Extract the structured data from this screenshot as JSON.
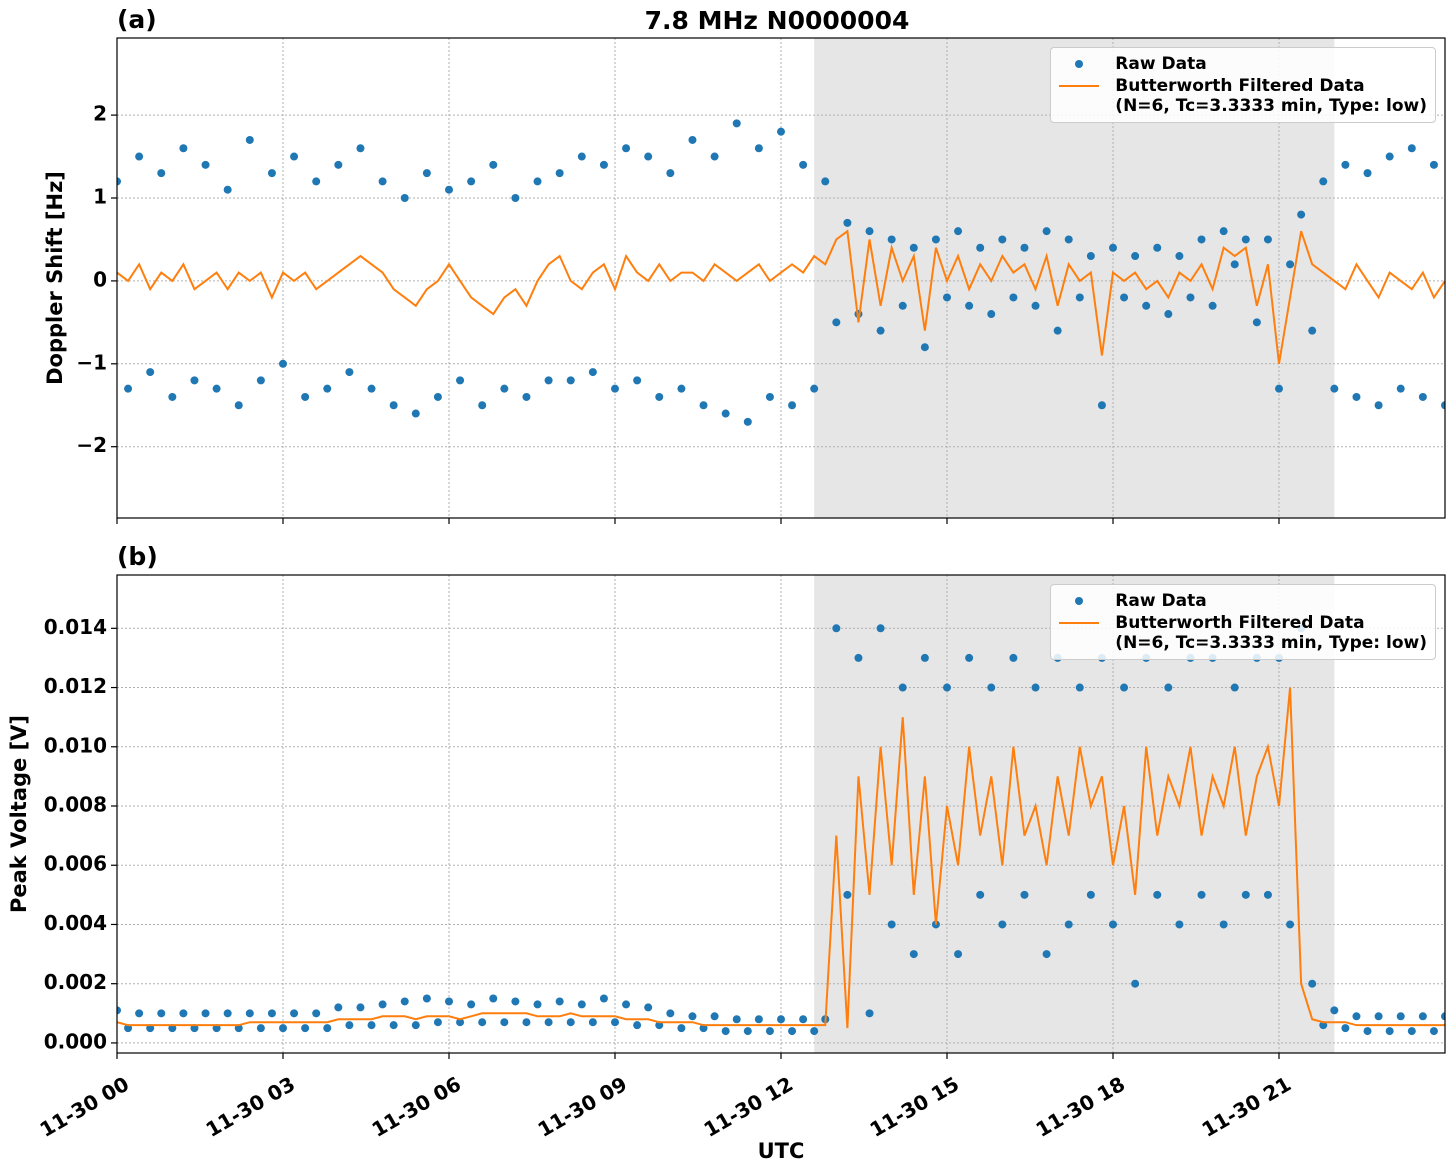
{
  "chart_data": [
    {
      "type": "line",
      "panel_label": "(a)",
      "title": "7.8 MHz N0000004",
      "ylabel": "Doppler Shift [Hz]",
      "xlim": [
        0,
        24
      ],
      "xticks": [
        0,
        3,
        6,
        9,
        12,
        15,
        18,
        21
      ],
      "ylim": [
        -2.86,
        2.93
      ],
      "yticks": [
        {
          "value": -2,
          "label": "−2"
        },
        {
          "value": -1,
          "label": "−1"
        },
        0,
        1,
        2
      ],
      "grid": true,
      "shaded_span": [
        12.6,
        22.0
      ],
      "legend": "upper right",
      "x": [
        0,
        0.2,
        0.4,
        0.6,
        0.8,
        1,
        1.2,
        1.4,
        1.6,
        1.8,
        2,
        2.2,
        2.4,
        2.6,
        2.8,
        3,
        3.2,
        3.4,
        3.6,
        3.8,
        4,
        4.2,
        4.4,
        4.6,
        4.8,
        5,
        5.2,
        5.4,
        5.6,
        5.8,
        6,
        6.2,
        6.4,
        6.6,
        6.8,
        7,
        7.2,
        7.4,
        7.6,
        7.8,
        8,
        8.2,
        8.4,
        8.6,
        8.8,
        9,
        9.2,
        9.4,
        9.6,
        9.8,
        10,
        10.2,
        10.4,
        10.6,
        10.8,
        11,
        11.2,
        11.4,
        11.6,
        11.8,
        12,
        12.2,
        12.4,
        12.6,
        12.8,
        13,
        13.2,
        13.4,
        13.6,
        13.8,
        14,
        14.2,
        14.4,
        14.6,
        14.8,
        15,
        15.2,
        15.4,
        15.6,
        15.8,
        16,
        16.2,
        16.4,
        16.6,
        16.8,
        17,
        17.2,
        17.4,
        17.6,
        17.8,
        18,
        18.2,
        18.4,
        18.6,
        18.8,
        19,
        19.2,
        19.4,
        19.6,
        19.8,
        20,
        20.2,
        20.4,
        20.6,
        20.8,
        21,
        21.2,
        21.4,
        21.6,
        21.8,
        22,
        22.2,
        22.4,
        22.6,
        22.8,
        23,
        23.2,
        23.4,
        23.6,
        23.8,
        24
      ],
      "series": [
        {
          "name": "Raw Data",
          "color": "#1f77b4",
          "style": "markers",
          "values": [
            1.2,
            -1.3,
            1.5,
            -1.1,
            1.3,
            -1.4,
            1.6,
            -1.2,
            1.4,
            -1.3,
            1.1,
            -1.5,
            1.7,
            -1.2,
            1.3,
            -1.0,
            1.5,
            -1.4,
            1.2,
            -1.3,
            1.4,
            -1.1,
            1.6,
            -1.3,
            1.2,
            -1.5,
            1.0,
            -1.6,
            1.3,
            -1.4,
            1.1,
            -1.2,
            1.2,
            -1.5,
            1.4,
            -1.3,
            1.0,
            -1.4,
            1.2,
            -1.2,
            1.3,
            -1.2,
            1.5,
            -1.1,
            1.4,
            -1.3,
            1.6,
            -1.2,
            1.5,
            -1.4,
            1.3,
            -1.3,
            1.7,
            -1.5,
            1.5,
            -1.6,
            1.9,
            -1.7,
            1.6,
            -1.4,
            1.8,
            -1.5,
            1.4,
            -1.3,
            1.2,
            -0.5,
            0.7,
            -0.4,
            0.6,
            -0.6,
            0.5,
            -0.3,
            0.4,
            -0.8,
            0.5,
            -0.2,
            0.6,
            -0.3,
            0.4,
            -0.4,
            0.5,
            -0.2,
            0.4,
            -0.3,
            0.6,
            -0.6,
            0.5,
            -0.2,
            0.3,
            -1.5,
            0.4,
            -0.2,
            0.3,
            -0.3,
            0.4,
            -0.4,
            0.3,
            -0.2,
            0.5,
            -0.3,
            0.6,
            0.2,
            0.5,
            -0.5,
            0.5,
            -1.3,
            0.2,
            0.8,
            -0.6,
            1.2,
            -1.3,
            1.4,
            -1.4,
            1.3,
            -1.5,
            1.5,
            -1.3,
            1.6,
            -1.4,
            1.4,
            -1.5
          ]
        },
        {
          "name": "Butterworth Filtered Data\n(N=6, Tc=3.3333 min, Type: low)",
          "color": "#ff7f0e",
          "style": "line",
          "values": [
            0.1,
            0.0,
            0.2,
            -0.1,
            0.1,
            0.0,
            0.2,
            -0.1,
            0.0,
            0.1,
            -0.1,
            0.1,
            0.0,
            0.1,
            -0.2,
            0.1,
            0.0,
            0.1,
            -0.1,
            0.0,
            0.1,
            0.2,
            0.3,
            0.2,
            0.1,
            -0.1,
            -0.2,
            -0.3,
            -0.1,
            0.0,
            0.2,
            0.0,
            -0.2,
            -0.3,
            -0.4,
            -0.2,
            -0.1,
            -0.3,
            0.0,
            0.2,
            0.3,
            0.0,
            -0.1,
            0.1,
            0.2,
            -0.1,
            0.3,
            0.1,
            0.0,
            0.2,
            0.0,
            0.1,
            0.1,
            0.0,
            0.2,
            0.1,
            0.0,
            0.1,
            0.2,
            0.0,
            0.1,
            0.2,
            0.1,
            0.3,
            0.2,
            0.5,
            0.6,
            -0.5,
            0.5,
            -0.3,
            0.4,
            0.0,
            0.3,
            -0.6,
            0.4,
            0.0,
            0.3,
            -0.1,
            0.2,
            0.0,
            0.3,
            0.1,
            0.2,
            -0.1,
            0.3,
            -0.3,
            0.2,
            0.0,
            0.1,
            -0.9,
            0.1,
            0.0,
            0.1,
            -0.1,
            0.0,
            -0.2,
            0.1,
            0.0,
            0.2,
            -0.1,
            0.4,
            0.3,
            0.4,
            -0.3,
            0.2,
            -1.0,
            -0.2,
            0.6,
            0.2,
            0.1,
            0.0,
            -0.1,
            0.2,
            0.0,
            -0.2,
            0.1,
            0.0,
            -0.1,
            0.1,
            -0.2,
            0.0
          ]
        }
      ]
    },
    {
      "type": "line",
      "panel_label": "(b)",
      "ylabel": "Peak Voltage [V]",
      "xlabel": "UTC",
      "xlim": [
        0,
        24
      ],
      "xticks": [
        {
          "value": 0,
          "label": "11-30 00"
        },
        {
          "value": 3,
          "label": "11-30 03"
        },
        {
          "value": 6,
          "label": "11-30 06"
        },
        {
          "value": 9,
          "label": "11-30 09"
        },
        {
          "value": 12,
          "label": "11-30 12"
        },
        {
          "value": 15,
          "label": "11-30 15"
        },
        {
          "value": 18,
          "label": "11-30 18"
        },
        {
          "value": 21,
          "label": "11-30 21"
        }
      ],
      "ylim": [
        -0.00034,
        0.0158
      ],
      "yticks": [
        {
          "value": 0,
          "label": "0.000"
        },
        {
          "value": 0.002,
          "label": "0.002"
        },
        {
          "value": 0.004,
          "label": "0.004"
        },
        {
          "value": 0.006,
          "label": "0.006"
        },
        {
          "value": 0.008,
          "label": "0.008"
        },
        {
          "value": 0.01,
          "label": "0.010"
        },
        {
          "value": 0.012,
          "label": "0.012"
        },
        {
          "value": 0.014,
          "label": "0.014"
        }
      ],
      "grid": true,
      "shaded_span": [
        12.6,
        22.0
      ],
      "legend": "upper right",
      "x": [
        0,
        0.2,
        0.4,
        0.6,
        0.8,
        1,
        1.2,
        1.4,
        1.6,
        1.8,
        2,
        2.2,
        2.4,
        2.6,
        2.8,
        3,
        3.2,
        3.4,
        3.6,
        3.8,
        4,
        4.2,
        4.4,
        4.6,
        4.8,
        5,
        5.2,
        5.4,
        5.6,
        5.8,
        6,
        6.2,
        6.4,
        6.6,
        6.8,
        7,
        7.2,
        7.4,
        7.6,
        7.8,
        8,
        8.2,
        8.4,
        8.6,
        8.8,
        9,
        9.2,
        9.4,
        9.6,
        9.8,
        10,
        10.2,
        10.4,
        10.6,
        10.8,
        11,
        11.2,
        11.4,
        11.6,
        11.8,
        12,
        12.2,
        12.4,
        12.6,
        12.8,
        13,
        13.2,
        13.4,
        13.6,
        13.8,
        14,
        14.2,
        14.4,
        14.6,
        14.8,
        15,
        15.2,
        15.4,
        15.6,
        15.8,
        16,
        16.2,
        16.4,
        16.6,
        16.8,
        17,
        17.2,
        17.4,
        17.6,
        17.8,
        18,
        18.2,
        18.4,
        18.6,
        18.8,
        19,
        19.2,
        19.4,
        19.6,
        19.8,
        20,
        20.2,
        20.4,
        20.6,
        20.8,
        21,
        21.2,
        21.4,
        21.6,
        21.8,
        22,
        22.2,
        22.4,
        22.6,
        22.8,
        23,
        23.2,
        23.4,
        23.6,
        23.8,
        24
      ],
      "series": [
        {
          "name": "Raw Data",
          "color": "#1f77b4",
          "style": "markers",
          "values": [
            0.0011,
            0.0005,
            0.001,
            0.0005,
            0.001,
            0.0005,
            0.001,
            0.0005,
            0.001,
            0.0005,
            0.001,
            0.0005,
            0.001,
            0.0005,
            0.001,
            0.0005,
            0.001,
            0.0005,
            0.001,
            0.0005,
            0.0012,
            0.0006,
            0.0012,
            0.0006,
            0.0013,
            0.0006,
            0.0014,
            0.0006,
            0.0015,
            0.0007,
            0.0014,
            0.0007,
            0.0013,
            0.0007,
            0.0015,
            0.0007,
            0.0014,
            0.0007,
            0.0013,
            0.0007,
            0.0014,
            0.0007,
            0.0013,
            0.0007,
            0.0015,
            0.0007,
            0.0013,
            0.0006,
            0.0012,
            0.0006,
            0.001,
            0.0005,
            0.0009,
            0.0005,
            0.0009,
            0.0004,
            0.0008,
            0.0004,
            0.0008,
            0.0004,
            0.0008,
            0.0004,
            0.0008,
            0.0004,
            0.0008,
            0.014,
            0.005,
            0.013,
            0.001,
            0.014,
            0.004,
            0.012,
            0.003,
            0.013,
            0.004,
            0.012,
            0.003,
            0.013,
            0.005,
            0.012,
            0.004,
            0.013,
            0.005,
            0.012,
            0.003,
            0.013,
            0.004,
            0.012,
            0.005,
            0.013,
            0.004,
            0.012,
            0.002,
            0.013,
            0.005,
            0.012,
            0.004,
            0.013,
            0.005,
            0.013,
            0.004,
            0.012,
            0.005,
            0.013,
            0.005,
            0.013,
            0.004,
            0.014,
            0.002,
            0.0006,
            0.0011,
            0.0005,
            0.0009,
            0.0004,
            0.0009,
            0.0004,
            0.0009,
            0.0004,
            0.0009,
            0.0004,
            0.0009
          ]
        },
        {
          "name": "Butterworth Filtered Data\n(N=6, Tc=3.3333 min, Type: low)",
          "color": "#ff7f0e",
          "style": "line",
          "values": [
            0.0007,
            0.0006,
            0.0006,
            0.0006,
            0.0006,
            0.0006,
            0.0006,
            0.0006,
            0.0006,
            0.0006,
            0.0006,
            0.0006,
            0.0007,
            0.0007,
            0.0007,
            0.0007,
            0.0007,
            0.0007,
            0.0007,
            0.0007,
            0.0008,
            0.0008,
            0.0008,
            0.0008,
            0.0009,
            0.0009,
            0.0009,
            0.0008,
            0.0009,
            0.0009,
            0.0009,
            0.0008,
            0.0009,
            0.001,
            0.001,
            0.001,
            0.001,
            0.001,
            0.0009,
            0.0009,
            0.0009,
            0.001,
            0.0009,
            0.0009,
            0.0009,
            0.0009,
            0.0008,
            0.0008,
            0.0008,
            0.0007,
            0.0007,
            0.0007,
            0.0007,
            0.0006,
            0.0006,
            0.0006,
            0.0006,
            0.0006,
            0.0006,
            0.0006,
            0.0006,
            0.0006,
            0.0006,
            0.0006,
            0.0006,
            0.007,
            0.0005,
            0.009,
            0.005,
            0.01,
            0.006,
            0.011,
            0.005,
            0.009,
            0.004,
            0.008,
            0.006,
            0.01,
            0.007,
            0.009,
            0.006,
            0.01,
            0.007,
            0.008,
            0.006,
            0.009,
            0.007,
            0.01,
            0.008,
            0.009,
            0.006,
            0.008,
            0.005,
            0.01,
            0.007,
            0.009,
            0.008,
            0.01,
            0.007,
            0.009,
            0.008,
            0.01,
            0.007,
            0.009,
            0.01,
            0.008,
            0.012,
            0.002,
            0.0008,
            0.0007,
            0.0007,
            0.0007,
            0.0006,
            0.0006,
            0.0006,
            0.0006,
            0.0006,
            0.0006,
            0.0006,
            0.0006,
            0.0006
          ]
        }
      ]
    }
  ]
}
